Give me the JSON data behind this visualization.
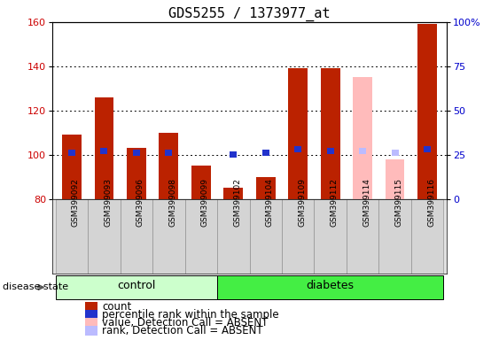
{
  "title": "GDS5255 / 1373977_at",
  "samples": [
    "GSM399092",
    "GSM399093",
    "GSM399096",
    "GSM399098",
    "GSM399099",
    "GSM399102",
    "GSM399104",
    "GSM399109",
    "GSM399112",
    "GSM399114",
    "GSM399115",
    "GSM399116"
  ],
  "groups": [
    "control",
    "control",
    "control",
    "control",
    "control",
    "diabetes",
    "diabetes",
    "diabetes",
    "diabetes",
    "diabetes",
    "diabetes",
    "diabetes"
  ],
  "count_values": [
    109,
    126,
    103,
    110,
    95,
    85,
    90,
    139,
    139,
    null,
    null,
    159
  ],
  "count_absent_values": [
    null,
    null,
    null,
    null,
    null,
    null,
    null,
    null,
    null,
    135,
    98,
    null
  ],
  "rank_values": [
    26,
    27,
    26,
    26,
    null,
    25,
    26,
    28,
    27,
    null,
    null,
    28
  ],
  "rank_absent_values": [
    null,
    null,
    null,
    null,
    null,
    null,
    null,
    null,
    null,
    27,
    26,
    null
  ],
  "ylim_left": [
    80,
    160
  ],
  "ylim_right": [
    0,
    100
  ],
  "yticks_left": [
    80,
    100,
    120,
    140,
    160
  ],
  "yticks_right": [
    0,
    25,
    50,
    75,
    100
  ],
  "ytick_labels_right": [
    "0",
    "25",
    "50",
    "75",
    "100%"
  ],
  "ylabel_left_color": "#cc0000",
  "ylabel_right_color": "#0000cc",
  "bar_width": 0.6,
  "bar_color_present": "#bb2200",
  "bar_color_absent": "#ffbbbb",
  "rank_color_present": "#2233cc",
  "rank_color_absent": "#bbbbff",
  "control_bg": "#ccffcc",
  "diabetes_bg": "#44ee44",
  "tick_fontsize": 8,
  "legend_fontsize": 8.5,
  "title_fontsize": 11,
  "sample_fontsize": 6.5,
  "group_fontsize": 9,
  "disease_state_label": "disease state",
  "group_labels": [
    "control",
    "diabetes"
  ],
  "n_control": 5,
  "n_diabetes": 7
}
